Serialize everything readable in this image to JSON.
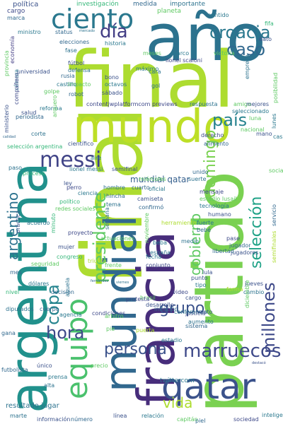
{
  "words": [
    {
      "text": "final",
      "color": "#addc30"
    },
    {
      "text": "año",
      "color": "#2c728e"
    },
    {
      "text": "argentina",
      "color": "#21918c"
    },
    {
      "text": "partido",
      "color": "#7ad151"
    },
    {
      "text": "mundo",
      "color": "#bddf26"
    },
    {
      "text": "francia",
      "color": "#472d7b"
    },
    {
      "text": "mundial",
      "color": "#31688e"
    },
    {
      "text": "qatar",
      "color": "#3b528b"
    },
    {
      "text": "ciento",
      "color": "#2a788e"
    },
    {
      "text": "croacia",
      "color": "#2a788e"
    },
    {
      "text": "equipo",
      "color": "#4ac16d"
    },
    {
      "text": "messi",
      "color": "#414487"
    },
    {
      "text": "marruecos",
      "color": "#3e4989"
    },
    {
      "text": "día",
      "color": "#433e85"
    },
    {
      "text": "caso",
      "color": "#31688e"
    },
    {
      "text": "país",
      "color": "#26828e"
    },
    {
      "text": "millones",
      "color": "#3e4989"
    },
    {
      "text": "presidente",
      "color": "#5ec962"
    },
    {
      "text": "copa",
      "color": "#25848e"
    },
    {
      "text": "hora",
      "color": "#3e4989"
    },
    {
      "text": "grupo",
      "color": "#3b528b"
    },
    {
      "text": "persona",
      "color": "#3b528b"
    },
    {
      "text": "domingo",
      "color": "#7ad151"
    },
    {
      "text": "gobierno",
      "color": "#5ec962"
    },
    {
      "text": "selección",
      "color": "#1fa287"
    },
    {
      "text": "argentino",
      "color": "#2c728e"
    },
    {
      "text": "vida",
      "color": "#addc30"
    },
    {
      "text": "mundial qatar",
      "color": "#355f8d"
    },
    {
      "text": "resultado jugar",
      "color": "#2c728e"
    },
    {
      "text": "twittercom",
      "color": "#2a788e"
    }
  ],
  "small_words": [
    "política",
    "investigación",
    "medida",
    "importante",
    "planeta",
    "sentido",
    "cargo",
    "marca",
    "ministro",
    "status",
    "mercado",
    "elecciones",
    "historia",
    "fifa",
    "dato",
    "economía",
    "provincia",
    "fase",
    "meses",
    "marco",
    "victoria",
    "lionel scaloni",
    "cámara",
    "fútbol",
    "defensa",
    "máximo",
    "universidad",
    "rusia",
    "impacto",
    "bono",
    "cara",
    "compañero",
    "castillo",
    "octavos",
    "gol",
    "golpe",
    "robot",
    "sábado",
    "empresa",
    "posibilidad",
    "ministerio",
    "reforma",
    "contentjwplatformcom previews",
    "respuesta",
    "amigo",
    "mejores",
    "seleccionado",
    "luna",
    "salud",
    "arquero",
    "periodista",
    "lunes",
    "nacional",
    "mano",
    "calidad",
    "corte",
    "derecho",
    "casa",
    "selección argentina",
    "científico",
    "aire",
    "alimento",
    "paso",
    "semifinal",
    "lionel messi",
    "social",
    "unido",
    "suerte",
    "proceso",
    "perro",
    "ley",
    "ciencia",
    "cuarto",
    "hombre",
    "miércoles",
    "oficial",
    "camiseta",
    "hincha",
    "tema",
    "mensaje",
    "estadio lusail",
    "tecnología",
    "servicio",
    "político",
    "redes sociales",
    "confirmó",
    "práctica",
    "acuerdo",
    "minuto",
    "semana",
    "proyecto",
    "noviembre",
    "humano",
    "fuerte",
    "bebé",
    "herramienta",
    "medio",
    "pase",
    "mujer",
    "actuaciones",
    "beba",
    "jugador",
    "semifinales",
    "congreso",
    "frente",
    "triunfo",
    "españa",
    "jugadores",
    "fecha",
    "libertad",
    "seguridad",
    "conjunto",
    "punto",
    "lula",
    "tipo",
    "nivel",
    "mes",
    "brasil",
    "video",
    "cambio",
    "jueves",
    "dólares",
    "decisión",
    "abuela",
    "cargo",
    "forma",
    "inflación",
    "protesta",
    "conferencia",
    "desarrollo",
    "diputados",
    "cuerpo",
    "condiciones",
    "justicia",
    "diciembre",
    "agencia",
    "árbitro",
    "resto",
    "sistema",
    "aumento",
    "pie",
    "puerta",
    "gana",
    "único",
    "alta",
    "futbolista",
    "estadio",
    "precio",
    "prensa",
    "marte",
    "información",
    "número",
    "línea",
    "relación",
    "capitán",
    "piel",
    "sociedad",
    "inteligencia artificial",
    "destacó",
    "fernández",
    "viernes"
  ]
}
